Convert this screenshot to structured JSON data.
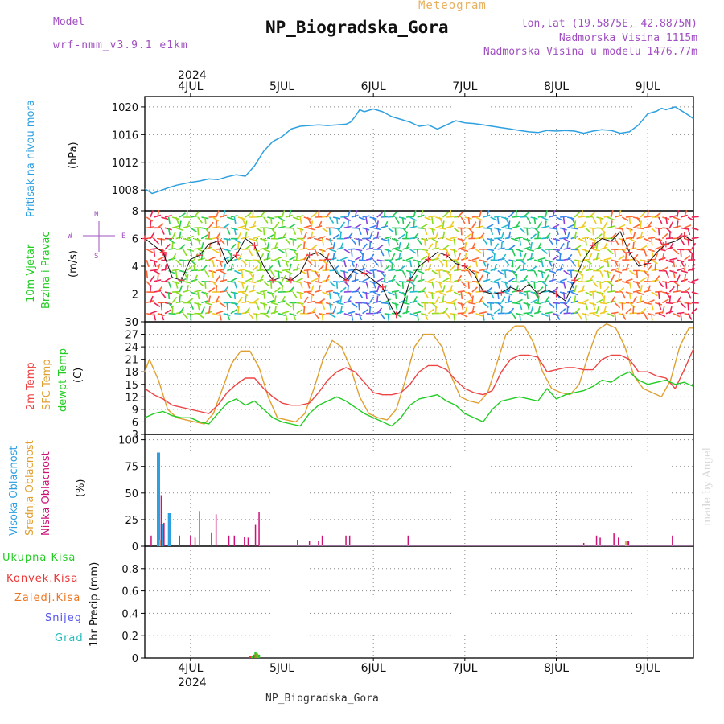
{
  "header": {
    "model_label": "Model",
    "model_name": "wrf-nmm_v3.9.1 e1km",
    "subtitle": "Meteogram",
    "title": "NP_Biogradska_Gora",
    "coords": "lon,lat (19.5875E, 42.8875N)",
    "elevation": "Nadmorska Visina 1115m",
    "model_elevation": "Nadmorska Visina u modelu 1476.77m",
    "footer": "NP_Biogradska_Gora",
    "watermark": "made by Angel"
  },
  "time_axis": {
    "year": "2024",
    "day_labels": [
      "4JUL",
      "5JUL",
      "6JUL",
      "7JUL",
      "8JUL",
      "9JUL"
    ],
    "start_day": 3.5,
    "end_day": 9.5
  },
  "colors": {
    "pressure": "#2ea0e0",
    "temp2m": "#ee4444",
    "sfc_temp": "#e0a030",
    "dewpoint": "#22cc22",
    "cloud_high": "#2ea0e0",
    "cloud_mid": "#e8b060",
    "cloud_low": "#cc1177",
    "precip_total": "#22cc22",
    "precip_conv": "#ee3333",
    "precip_frozen": "#ee7722",
    "snow": "#5555ee",
    "hail": "#22bbbb",
    "model_text": "#a050c0",
    "meteogram_text": "#e8b060"
  },
  "chart_data": [
    {
      "id": "pressure",
      "type": "line",
      "ylabel_main": "Pritisak na nivou mora",
      "ylabel_unit": "(hPa)",
      "ylim": [
        1005,
        1021.5
      ],
      "yticks": [
        1008,
        1012,
        1016,
        1020
      ],
      "series": [
        {
          "x": [
            3.5,
            3.58,
            3.65,
            3.75,
            3.85,
            4.0,
            4.1,
            4.2,
            4.3,
            4.4,
            4.5,
            4.6,
            4.7,
            4.8,
            4.9,
            5.0,
            5.1,
            5.2,
            5.3,
            5.4,
            5.5,
            5.6,
            5.7,
            5.75,
            5.8,
            5.85,
            5.9,
            6.0,
            6.1,
            6.2,
            6.3,
            6.4,
            6.5,
            6.6,
            6.7,
            6.8,
            6.9,
            7.0,
            7.1,
            7.2,
            7.3,
            7.4,
            7.5,
            7.6,
            7.7,
            7.8,
            7.9,
            8.0,
            8.1,
            8.2,
            8.3,
            8.4,
            8.5,
            8.6,
            8.7,
            8.8,
            8.9,
            9.0,
            9.1,
            9.15,
            9.2,
            9.3,
            9.4,
            9.5
          ],
          "y": [
            1008.2,
            1007.5,
            1007.8,
            1008.3,
            1008.7,
            1009.1,
            1009.3,
            1009.6,
            1009.5,
            1009.9,
            1010.2,
            1010.0,
            1011.5,
            1013.6,
            1015.0,
            1015.7,
            1016.8,
            1017.2,
            1017.3,
            1017.4,
            1017.3,
            1017.4,
            1017.5,
            1017.8,
            1018.6,
            1019.6,
            1019.3,
            1019.7,
            1019.3,
            1018.6,
            1018.2,
            1017.8,
            1017.2,
            1017.4,
            1016.8,
            1017.4,
            1018.0,
            1017.7,
            1017.6,
            1017.4,
            1017.2,
            1017.0,
            1016.8,
            1016.6,
            1016.4,
            1016.3,
            1016.6,
            1016.5,
            1016.6,
            1016.5,
            1016.2,
            1016.5,
            1016.7,
            1016.6,
            1016.2,
            1016.4,
            1017.4,
            1019.0,
            1019.4,
            1019.8,
            1019.6,
            1020.0,
            1019.2,
            1018.3
          ]
        }
      ]
    },
    {
      "id": "wind",
      "type": "line",
      "ylabel_main": "10m Vjetar",
      "ylabel_sub": "Brzina i Pravac",
      "ylabel_unit": "(m/s)",
      "compass": {
        "n": "N",
        "e": "E",
        "w": "W",
        "s": "S"
      },
      "ylim": [
        0,
        8
      ],
      "yticks": [
        0,
        2,
        4,
        6,
        8
      ],
      "series": [
        {
          "name": "speed",
          "x": [
            3.5,
            3.6,
            3.7,
            3.8,
            3.9,
            4.0,
            4.1,
            4.2,
            4.3,
            4.4,
            4.5,
            4.6,
            4.7,
            4.8,
            4.9,
            5.0,
            5.1,
            5.2,
            5.3,
            5.4,
            5.5,
            5.6,
            5.7,
            5.8,
            5.9,
            6.0,
            6.1,
            6.2,
            6.25,
            6.3,
            6.4,
            6.5,
            6.6,
            6.7,
            6.8,
            6.9,
            7.0,
            7.1,
            7.2,
            7.3,
            7.4,
            7.5,
            7.6,
            7.7,
            7.8,
            7.9,
            8.0,
            8.1,
            8.2,
            8.3,
            8.4,
            8.5,
            8.6,
            8.7,
            8.8,
            8.9,
            9.0,
            9.1,
            9.2,
            9.3,
            9.4,
            9.5
          ],
          "y": [
            6.0,
            5.5,
            5.0,
            3.2,
            3.0,
            4.5,
            4.8,
            5.6,
            5.8,
            4.2,
            4.8,
            6.0,
            5.5,
            4.0,
            3.0,
            3.2,
            3.0,
            3.5,
            4.8,
            5.0,
            4.5,
            3.5,
            3.0,
            3.8,
            3.5,
            3.0,
            2.5,
            1.0,
            0.5,
            0.8,
            3.0,
            4.0,
            4.5,
            5.0,
            4.8,
            4.2,
            4.0,
            3.5,
            2.2,
            2.0,
            2.1,
            2.5,
            2.2,
            2.7,
            2.0,
            2.3,
            2.0,
            1.5,
            3.0,
            4.5,
            5.5,
            6.0,
            5.8,
            6.5,
            5.0,
            4.0,
            4.2,
            5.0,
            5.6,
            5.8,
            6.2,
            5.8
          ]
        }
      ]
    },
    {
      "id": "temperature",
      "type": "line",
      "ylabel_2m": "2m Temp",
      "ylabel_sfc": "SFC Temp",
      "ylabel_dew": "dewpt Temp",
      "ylabel_unit": "(C)",
      "ylim": [
        3,
        30
      ],
      "yticks": [
        3,
        6,
        9,
        12,
        15,
        18,
        21,
        24,
        27,
        30
      ],
      "series": [
        {
          "name": "2m Temp",
          "x": [
            3.5,
            3.6,
            3.7,
            3.8,
            3.9,
            4.0,
            4.1,
            4.2,
            4.3,
            4.4,
            4.5,
            4.6,
            4.7,
            4.8,
            4.9,
            5.0,
            5.1,
            5.2,
            5.3,
            5.4,
            5.5,
            5.6,
            5.7,
            5.8,
            5.9,
            6.0,
            6.1,
            6.2,
            6.3,
            6.4,
            6.5,
            6.6,
            6.7,
            6.8,
            6.9,
            7.0,
            7.1,
            7.2,
            7.3,
            7.4,
            7.5,
            7.6,
            7.7,
            7.8,
            7.9,
            8.0,
            8.1,
            8.2,
            8.3,
            8.4,
            8.5,
            8.6,
            8.7,
            8.8,
            8.9,
            9.0,
            9.1,
            9.2,
            9.3,
            9.4,
            9.5
          ],
          "y": [
            14,
            12.5,
            11.5,
            10,
            9.5,
            9,
            8.5,
            8,
            10,
            13,
            15,
            16.5,
            16.5,
            14,
            12,
            10.5,
            10,
            10,
            10.5,
            13,
            16,
            18,
            19,
            18,
            15.5,
            13,
            12.5,
            12.5,
            13,
            15,
            18,
            19.5,
            19.5,
            18.5,
            16,
            14,
            13,
            12.5,
            13.5,
            18,
            21,
            22,
            22,
            21.5,
            18,
            18.5,
            19,
            19,
            18.5,
            18.5,
            21,
            22,
            22,
            21,
            18,
            18,
            17,
            16.5,
            14,
            18.5,
            23.5
          ]
        },
        {
          "name": "SFC Temp",
          "x": [
            3.5,
            3.55,
            3.65,
            3.75,
            3.85,
            3.95,
            4.05,
            4.15,
            4.25,
            4.35,
            4.45,
            4.55,
            4.65,
            4.75,
            4.85,
            4.95,
            5.05,
            5.15,
            5.25,
            5.35,
            5.45,
            5.55,
            5.65,
            5.75,
            5.85,
            5.95,
            6.05,
            6.15,
            6.25,
            6.35,
            6.45,
            6.55,
            6.65,
            6.75,
            6.85,
            6.95,
            7.05,
            7.15,
            7.25,
            7.35,
            7.45,
            7.55,
            7.65,
            7.75,
            7.85,
            7.95,
            8.05,
            8.15,
            8.25,
            8.35,
            8.45,
            8.55,
            8.65,
            8.75,
            8.85,
            8.95,
            9.05,
            9.15,
            9.25,
            9.35,
            9.45,
            9.5
          ],
          "y": [
            18,
            21,
            16,
            9,
            7,
            6.5,
            6,
            5.5,
            8,
            14,
            20,
            23,
            23,
            19,
            12,
            7,
            6.5,
            6,
            8,
            14,
            21,
            25.5,
            24,
            19,
            12,
            8,
            7,
            6.5,
            9,
            16,
            24,
            27,
            27,
            24,
            17,
            12,
            11,
            10.5,
            13,
            20,
            27,
            29,
            29,
            25,
            18,
            14,
            13,
            12.5,
            15,
            22,
            28,
            29.5,
            28.5,
            24,
            17,
            14,
            13,
            12,
            16,
            24,
            28.5,
            28.5
          ]
        },
        {
          "name": "dewpt Temp",
          "x": [
            3.5,
            3.6,
            3.7,
            3.8,
            3.9,
            4.0,
            4.1,
            4.2,
            4.3,
            4.4,
            4.5,
            4.6,
            4.7,
            4.8,
            4.9,
            5.0,
            5.1,
            5.2,
            5.3,
            5.4,
            5.5,
            5.6,
            5.7,
            5.8,
            5.9,
            6.0,
            6.1,
            6.2,
            6.3,
            6.4,
            6.5,
            6.6,
            6.7,
            6.8,
            6.9,
            7.0,
            7.1,
            7.2,
            7.3,
            7.4,
            7.5,
            7.6,
            7.7,
            7.8,
            7.9,
            8.0,
            8.1,
            8.2,
            8.3,
            8.4,
            8.5,
            8.6,
            8.7,
            8.8,
            8.9,
            9.0,
            9.1,
            9.2,
            9.3,
            9.4,
            9.5
          ],
          "y": [
            7,
            8,
            8.5,
            7.5,
            7,
            7,
            6,
            5.5,
            8,
            10.5,
            11.5,
            10,
            11,
            9,
            7,
            6,
            5.5,
            5,
            8,
            10,
            11,
            12,
            11,
            9.5,
            8,
            7,
            6,
            5,
            7,
            10,
            11.5,
            12,
            12.5,
            11,
            10,
            8,
            7,
            6,
            9,
            11,
            11.5,
            12,
            11.5,
            11,
            14,
            11.5,
            12.5,
            13,
            13.5,
            14.5,
            16,
            15.5,
            17,
            18,
            16,
            15,
            15.5,
            16,
            15,
            15.5,
            14.5
          ]
        }
      ]
    },
    {
      "id": "clouds",
      "type": "bar",
      "ylabel_high": "Visoka Oblacnost",
      "ylabel_mid": "Srednja Oblacnost",
      "ylabel_low": "Niska Oblacnost",
      "ylabel_unit": "(%)",
      "ylim": [
        0,
        105
      ],
      "yticks": [
        0,
        25,
        50,
        75,
        100
      ],
      "series": [
        {
          "name": "high",
          "bars": [
            [
              3.65,
              88
            ],
            [
              3.69,
              21
            ],
            [
              3.77,
              31
            ],
            [
              8.78,
              5
            ]
          ]
        },
        {
          "name": "mid",
          "bars": [
            [
              3.67,
              6
            ],
            [
              8.76,
              5
            ]
          ]
        },
        {
          "name": "low",
          "bars": [
            [
              3.57,
              10
            ],
            [
              3.68,
              48
            ],
            [
              3.71,
              22
            ],
            [
              3.88,
              10
            ],
            [
              4.0,
              10
            ],
            [
              4.05,
              8
            ],
            [
              4.1,
              33
            ],
            [
              4.23,
              13
            ],
            [
              4.28,
              30
            ],
            [
              4.42,
              10
            ],
            [
              4.48,
              10
            ],
            [
              4.59,
              9
            ],
            [
              4.63,
              8
            ],
            [
              4.71,
              20
            ],
            [
              4.75,
              32
            ],
            [
              5.17,
              6
            ],
            [
              5.3,
              5
            ],
            [
              5.4,
              5
            ],
            [
              5.44,
              10
            ],
            [
              5.7,
              10
            ],
            [
              5.74,
              10
            ],
            [
              6.38,
              10
            ],
            [
              8.3,
              3
            ],
            [
              8.44,
              10
            ],
            [
              8.48,
              8
            ],
            [
              8.63,
              12
            ],
            [
              8.68,
              8
            ],
            [
              8.79,
              5
            ],
            [
              9.27,
              10
            ]
          ]
        }
      ]
    },
    {
      "id": "precip",
      "type": "bar",
      "ylabel_total": "Ukupna Kisa",
      "ylabel_conv": "Konvek.Kisa",
      "ylabel_frozen": "Zaledj.Kisa",
      "ylabel_snow": "Snijeg",
      "ylabel_hail": "Grad",
      "ylabel_unit": "1hr Precip (mm)",
      "ylim": [
        0,
        1.0
      ],
      "yticks": [
        0,
        0.2,
        0.4,
        0.6,
        0.8
      ],
      "ytick_labels": [
        "0",
        "0.2",
        "0.4",
        "0.6",
        "0.8"
      ],
      "series": [
        {
          "name": "total",
          "bars": [
            [
              4.67,
              0.02
            ],
            [
              4.71,
              0.05
            ],
            [
              4.75,
              0.03
            ]
          ]
        },
        {
          "name": "conv",
          "bars": [
            [
              4.65,
              0.02
            ],
            [
              4.69,
              0.03
            ]
          ]
        },
        {
          "name": "frozen",
          "bars": [
            [
              4.73,
              0.04
            ]
          ]
        }
      ]
    }
  ]
}
